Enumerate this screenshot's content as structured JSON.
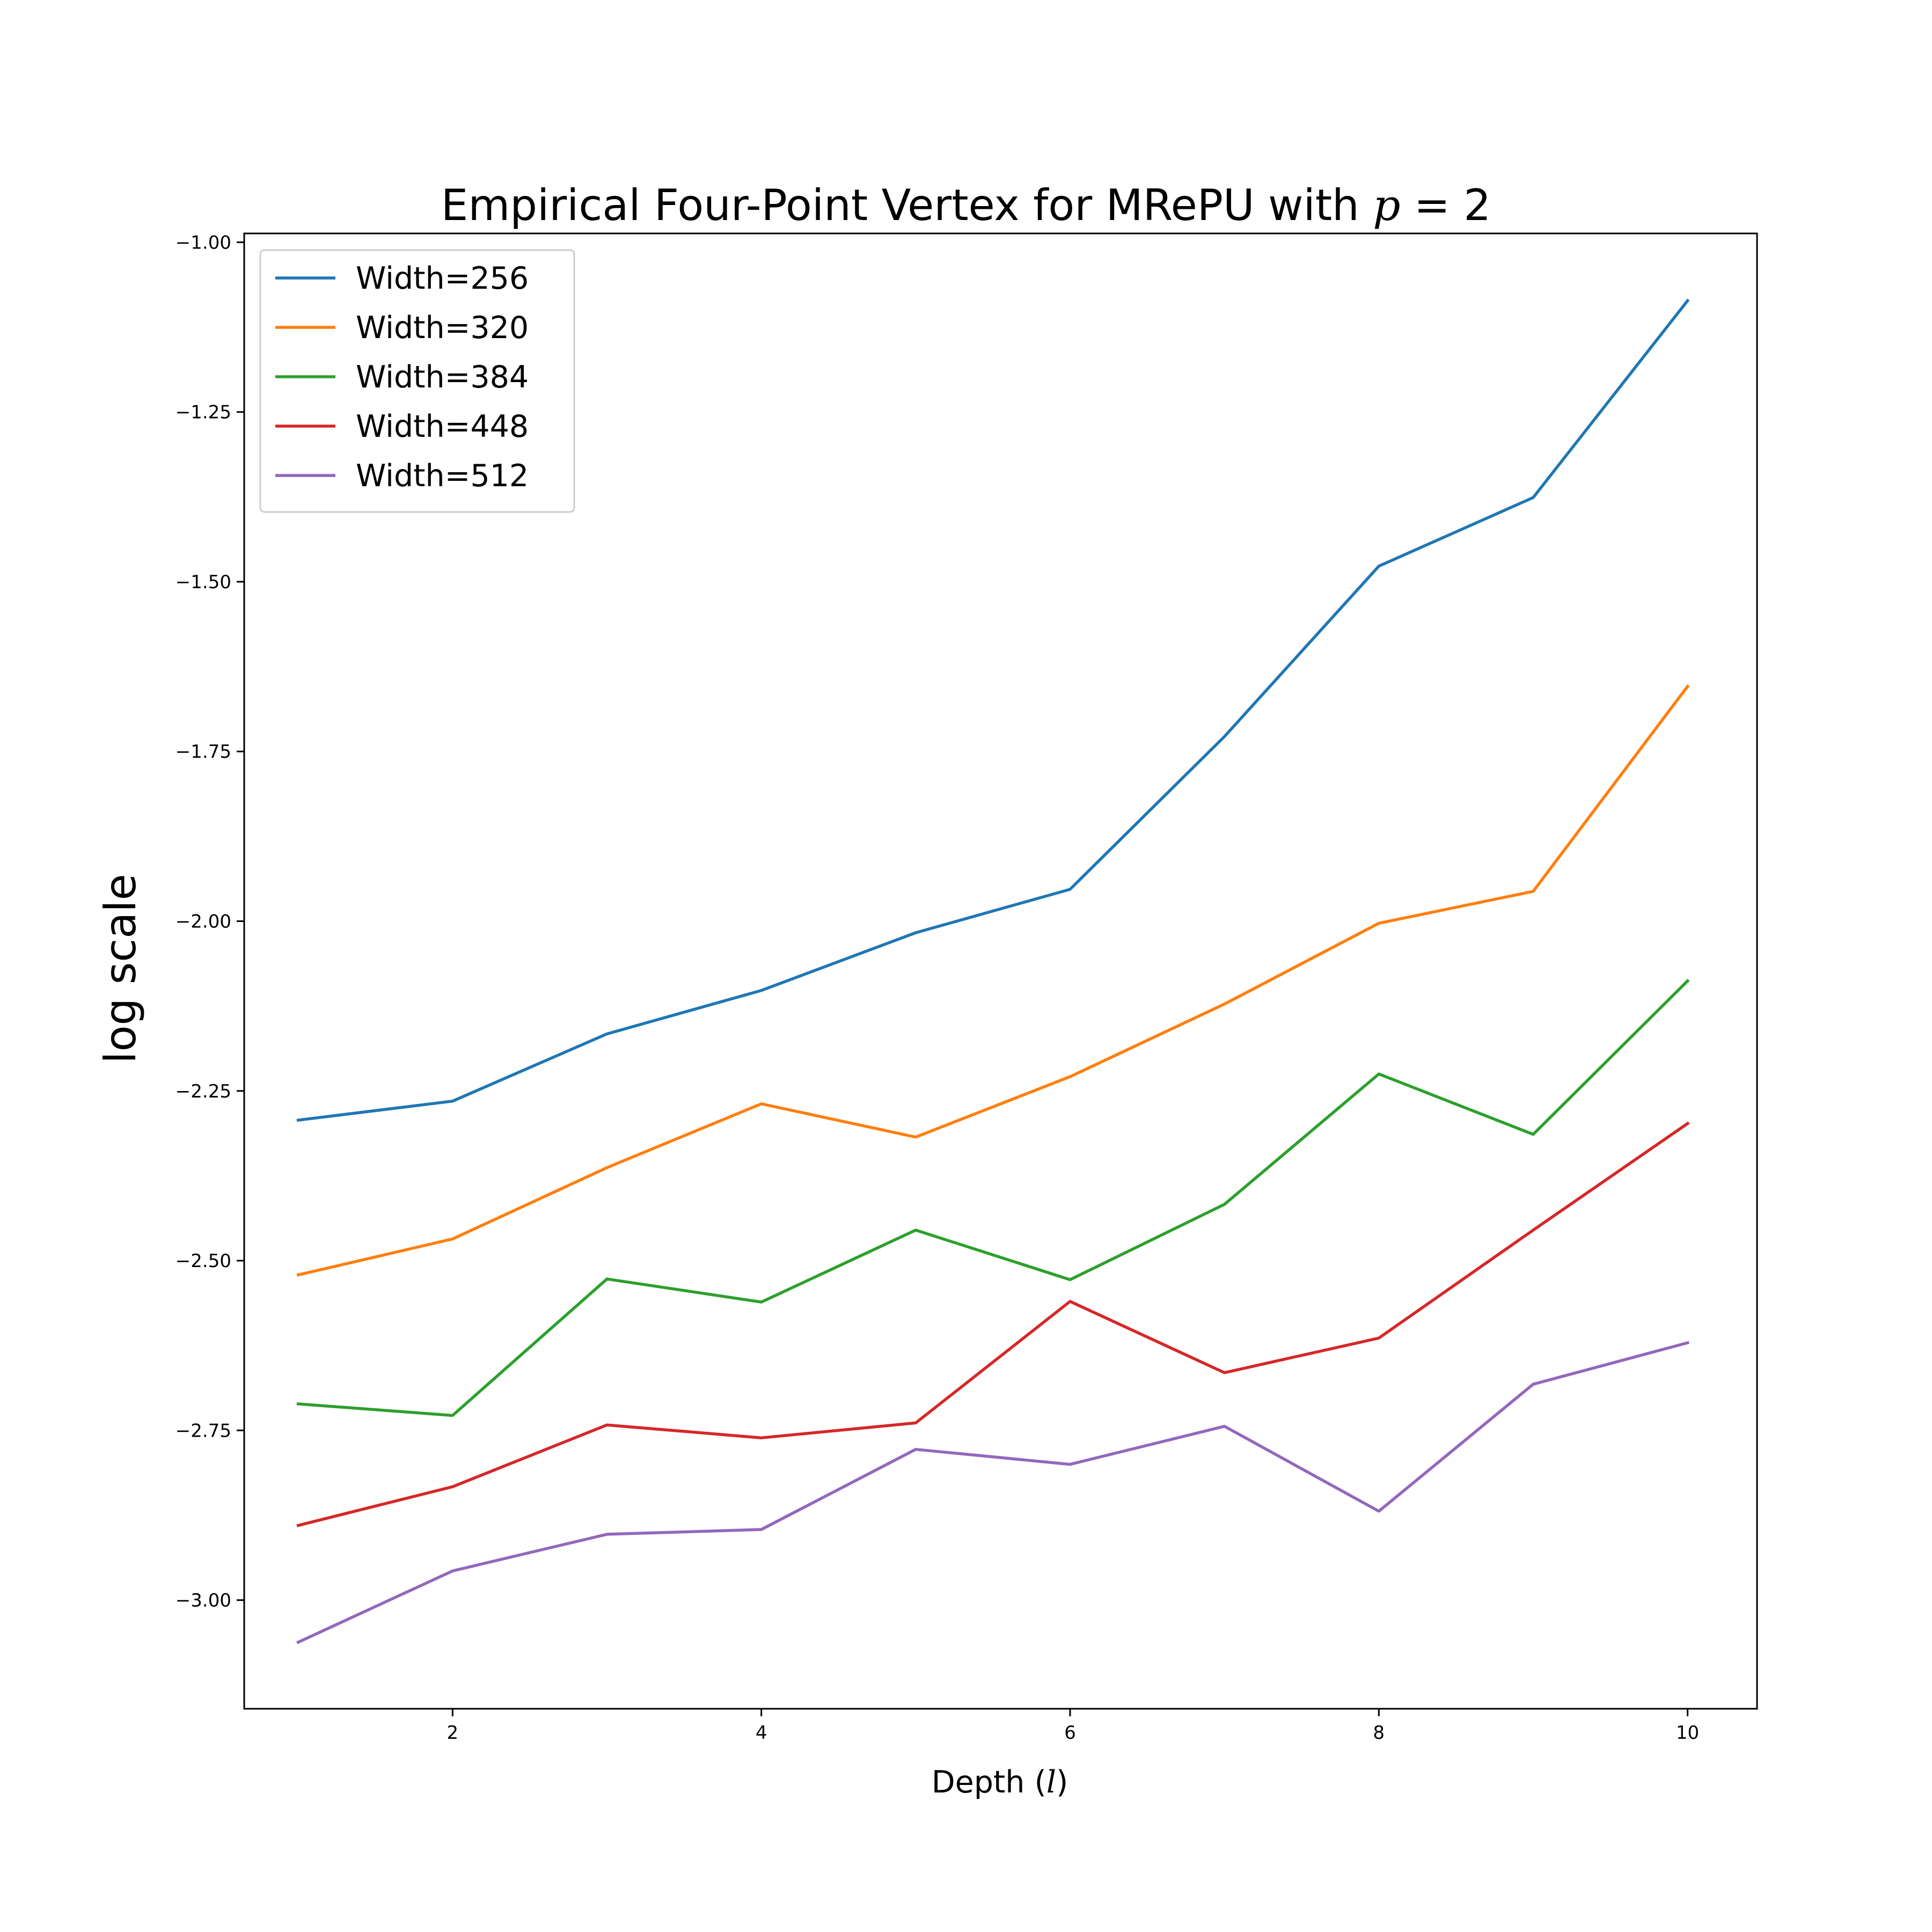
{
  "chart_data": {
    "type": "line",
    "title_prefix": "Empirical Four-Point Vertex for MRePU with ",
    "title_math_var": "p",
    "title_math_rest": " = 2",
    "xlabel_prefix": "Depth (",
    "xlabel_var": "l",
    "xlabel_suffix": ")",
    "ylabel": "log scale",
    "x": [
      1,
      2,
      3,
      4,
      5,
      6,
      7,
      8,
      9,
      10
    ],
    "xlim": [
      0.65,
      10.45
    ],
    "ylim": [
      -3.16,
      -0.987
    ],
    "xticks": [
      2,
      4,
      6,
      8,
      10
    ],
    "xtick_labels": [
      "2",
      "4",
      "6",
      "8",
      "10"
    ],
    "yticks": [
      -1.0,
      -1.25,
      -1.5,
      -1.75,
      -2.0,
      -2.25,
      -2.5,
      -2.75,
      -3.0
    ],
    "ytick_labels": [
      "−1.00",
      "−1.25",
      "−1.50",
      "−1.75",
      "−2.00",
      "−2.25",
      "−2.50",
      "−2.75",
      "−3.00"
    ],
    "grid": false,
    "legend_position": "top-left",
    "series": [
      {
        "name": "Width=256",
        "color": "#1f77b4",
        "values": [
          -2.293,
          -2.265,
          -2.166,
          -2.102,
          -2.017,
          -1.953,
          -1.728,
          -1.477,
          -1.376,
          -1.086
        ]
      },
      {
        "name": "Width=320",
        "color": "#ff7f0e",
        "values": [
          -2.521,
          -2.468,
          -2.363,
          -2.269,
          -2.318,
          -2.229,
          -2.122,
          -2.003,
          -1.956,
          -1.654
        ]
      },
      {
        "name": "Width=384",
        "color": "#2ca02c",
        "values": [
          -2.711,
          -2.728,
          -2.527,
          -2.561,
          -2.455,
          -2.528,
          -2.417,
          -2.225,
          -2.314,
          -2.088
        ]
      },
      {
        "name": "Width=448",
        "color": "#d62728",
        "values": [
          -2.89,
          -2.833,
          -2.742,
          -2.761,
          -2.739,
          -2.56,
          -2.665,
          -2.614,
          -2.455,
          -2.298
        ]
      },
      {
        "name": "Width=512",
        "color": "#9467bd",
        "values": [
          -3.062,
          -2.957,
          -2.903,
          -2.896,
          -2.778,
          -2.8,
          -2.744,
          -2.869,
          -2.682,
          -2.621
        ]
      }
    ]
  }
}
